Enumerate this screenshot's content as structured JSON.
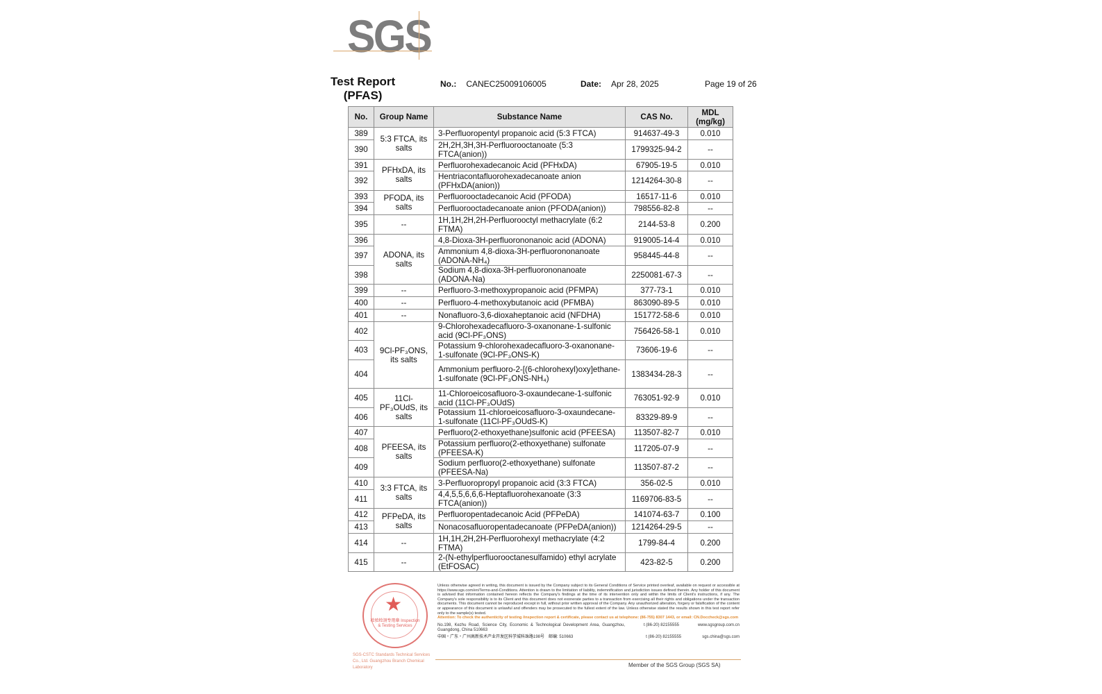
{
  "logo": {
    "text": "SGS",
    "color": "#7d7d7d",
    "accent": "#d9a46a"
  },
  "header": {
    "title_line1": "Test Report",
    "title_line2": "(PFAS)",
    "no_label": "No.:",
    "no_value": "CANEC25009106005",
    "date_label": "Date:",
    "date_value": "Apr 28, 2025",
    "page": "Page 19 of 26"
  },
  "table": {
    "columns": [
      "No.",
      "Group Name",
      "Substance Name",
      "CAS No.",
      "MDL (mg/kg)"
    ],
    "rows": [
      {
        "no": "389",
        "group": "5:3 FTCA, its salts",
        "name": "3-Perfluoropentyl propanoic acid (5:3 FTCA)",
        "cas": "914637-49-3",
        "mdl": "0.010"
      },
      {
        "no": "390",
        "name": "2H,2H,3H,3H-Perfluorooctanoate (5:3 FTCA(anion))",
        "cas": "1799325-94-2",
        "mdl": "--"
      },
      {
        "no": "391",
        "group": "PFHxDA, its salts",
        "name": "Perfluorohexadecanoic Acid (PFHxDA)",
        "cas": "67905-19-5",
        "mdl": "0.010"
      },
      {
        "no": "392",
        "name": "Hentriacontafluorohexadecanoate anion (PFHxDA(anion))",
        "cas": "1214264-30-8",
        "mdl": "--"
      },
      {
        "no": "393",
        "group": "PFODA, its salts",
        "name": "Perfluorooctadecanoic Acid (PFODA)",
        "cas": "16517-11-6",
        "mdl": "0.010"
      },
      {
        "no": "394",
        "name": "Perfluorooctadecanoate anion (PFODA(anion))",
        "cas": "798556-82-8",
        "mdl": "--"
      },
      {
        "no": "395",
        "group": "--",
        "name": "1H,1H,2H,2H-Perfluorooctyl methacrylate (6:2 FTMA)",
        "cas": "2144-53-8",
        "mdl": "0.200"
      },
      {
        "no": "396",
        "group": "ADONA, its salts",
        "name": "4,8-Dioxa-3H-perfluorononanoic acid (ADONA)",
        "cas": "919005-14-4",
        "mdl": "0.010"
      },
      {
        "no": "397",
        "name": "Ammonium 4,8-dioxa-3H-perfluorononanoate (ADONA-NH₄)",
        "cas": "958445-44-8",
        "mdl": "--"
      },
      {
        "no": "398",
        "name": "Sodium 4,8-dioxa-3H-perfluorononanoate (ADONA-Na)",
        "cas": "2250081-67-3",
        "mdl": "--"
      },
      {
        "no": "399",
        "group": "--",
        "name": "Perfluoro-3-methoxypropanoic acid (PFMPA)",
        "cas": "377-73-1",
        "mdl": "0.010"
      },
      {
        "no": "400",
        "group": "--",
        "name": "Perfluoro-4-methoxybutanoic acid (PFMBA)",
        "cas": "863090-89-5",
        "mdl": "0.010"
      },
      {
        "no": "401",
        "group": "--",
        "name": "Nonafluoro-3,6-dioxaheptanoic acid (NFDHA)",
        "cas": "151772-58-6",
        "mdl": "0.010"
      },
      {
        "no": "402",
        "group": "9Cl-PF₃ONS, its salts",
        "name": "9-Chlorohexadecafluoro-3-oxanonane-1-sulfonic acid (9Cl-PF₃ONS)",
        "cas": "756426-58-1",
        "mdl": "0.010"
      },
      {
        "no": "403",
        "name": "Potassium 9-chlorohexadecafluoro-3-oxanonane-1-sulfonate (9Cl-PF₃ONS-K)",
        "cas": "73606-19-6",
        "mdl": "--"
      },
      {
        "no": "404",
        "name": "Ammonium perfluoro-2-[(6-chlorohexyl)oxy]ethane-1-sulfonate (9Cl-PF₃ONS-NH₄)",
        "cas": "1383434-28-3",
        "mdl": "--"
      },
      {
        "no": "405",
        "group": "11Cl-PF₃OUdS, its salts",
        "name": "11-Chloroeicosafluoro-3-oxaundecane-1-sulfonic acid (11Cl-PF₃OUdS)",
        "cas": "763051-92-9",
        "mdl": "0.010"
      },
      {
        "no": "406",
        "name": "Potassium 11-chloroeicosafluoro-3-oxaundecane-1-sulfonate (11Cl-PF₃OUdS-K)",
        "cas": "83329-89-9",
        "mdl": "--"
      },
      {
        "no": "407",
        "group": "PFEESA, its salts",
        "name": "Perfluoro(2-ethoxyethane)sulfonic acid (PFEESA)",
        "cas": "113507-82-7",
        "mdl": "0.010"
      },
      {
        "no": "408",
        "name": "Potassium perfluoro(2-ethoxyethane) sulfonate (PFEESA-K)",
        "cas": "117205-07-9",
        "mdl": "--"
      },
      {
        "no": "409",
        "name": "Sodium perfluoro(2-ethoxyethane) sulfonate (PFEESA-Na)",
        "cas": "113507-87-2",
        "mdl": "--"
      },
      {
        "no": "410",
        "group": "3:3 FTCA, its salts",
        "name": "3-Perfluoropropyl propanoic acid (3:3 FTCA)",
        "cas": "356-02-5",
        "mdl": "0.010"
      },
      {
        "no": "411",
        "name": "4,4,5,5,6,6,6-Heptafluorohexanoate (3:3 FTCA(anion))",
        "cas": "1169706-83-5",
        "mdl": "--"
      },
      {
        "no": "412",
        "group": "PFPeDA, its salts",
        "name": "Perfluoropentadecanoic Acid (PFPeDA)",
        "cas": "141074-63-7",
        "mdl": "0.100"
      },
      {
        "no": "413",
        "name": "Nonacosafluoropentadecanoate (PFPeDA(anion))",
        "cas": "1214264-29-5",
        "mdl": "--"
      },
      {
        "no": "414",
        "group": "--",
        "name": "1H,1H,2H,2H-Perfluorohexyl methacrylate (4:2 FTMA)",
        "cas": "1799-84-4",
        "mdl": "0.200"
      },
      {
        "no": "415",
        "group": "--",
        "name": "2-(N-ethylperfluorooctanesulfamido) ethyl acrylate (EtFOSAC)",
        "cas": "423-82-5",
        "mdl": "0.200"
      }
    ]
  },
  "footer": {
    "stamp_text": "检验检测专用章 Inspection & Testing Services",
    "lab_text": "SGS-CSTC Standards Technical Services Co., Ltd. Guangzhou Branch Chemical Laboratory",
    "disclaimer": "Unless otherwise agreed in writing, this document is issued by the Company subject to its General Conditions of Service printed overleaf, available on request or accessible at https://www.sgs.com/en/Terms-and-Conditions. Attention is drawn to the limitation of liability, indemnification and jurisdiction issues defined therein. Any holder of this document is advised that information contained hereon reflects the Company's findings at the time of its intervention only and within the limits of Client's instructions, if any. The Company's sole responsibility is to its Client and this document does not exonerate parties to a transaction from exercising all their rights and obligations under the transaction documents. This document cannot be reproduced except in full, without prior written approval of the Company. Any unauthorized alteration, forgery or falsification of the content or appearance of this document is unlawful and offenders may be prosecuted to the fullest extent of the law. Unless otherwise stated the results shown in this test report refer only to the sample(s) tested.",
    "attention": "Attention: To check the authenticity of testing /inspection report & certificate, please contact us at telephone: (86-755) 8307 1443, or email: CN.Doccheck@sgs.com",
    "address_en": "No.198, Kezhu Road, Science City, Economic & Technological Development Area, Guangzhou, Guangdong, China 510663",
    "address_cn": "中国・广东・广州高新技术产业开发区科学城科珠路198号　邮编: 510663",
    "phone1": "t (86-20) 82155555",
    "phone2": "t (86-20) 82155555",
    "web": "www.sgsgroup.com.cn",
    "email": "sgs.china@sgs.com",
    "member": "Member of the SGS Group (SGS SA)"
  }
}
